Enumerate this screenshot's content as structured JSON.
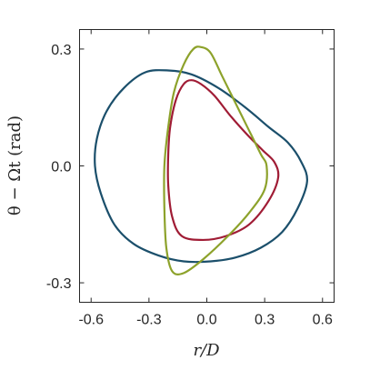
{
  "chart_data": {
    "type": "line",
    "title": "",
    "xlabel": "r/D",
    "ylabel": "θ − Ωt (rad)",
    "xlim": [
      -0.66,
      0.66
    ],
    "ylim": [
      -0.35,
      0.35
    ],
    "xticks": [
      -0.6,
      -0.3,
      0.0,
      0.3,
      0.6
    ],
    "xtick_labels": [
      "-0.6",
      "-0.3",
      "0.0",
      "0.3",
      "0.6"
    ],
    "yticks": [
      -0.3,
      0.0,
      0.3
    ],
    "ytick_labels": [
      "-0.3",
      "0.0",
      "0.3"
    ],
    "grid": false,
    "legend": "none",
    "series": [
      {
        "color": "#1b4f6b",
        "closed": true,
        "x": [
          0.52,
          0.47,
          0.39,
          0.28,
          0.15,
          0.02,
          -0.12,
          -0.25,
          -0.38,
          -0.48,
          -0.55,
          -0.58,
          -0.57,
          -0.52,
          -0.43,
          -0.32,
          -0.2,
          -0.08,
          0.06,
          0.2,
          0.32,
          0.42,
          0.49,
          0.52
        ],
        "y": [
          -0.04,
          -0.11,
          -0.17,
          -0.21,
          -0.235,
          -0.245,
          -0.245,
          -0.23,
          -0.2,
          -0.15,
          -0.07,
          0.0,
          0.07,
          0.14,
          0.2,
          0.24,
          0.245,
          0.235,
          0.2,
          0.15,
          0.1,
          0.06,
          0.01,
          -0.04
        ]
      },
      {
        "color": "#a01c35",
        "closed": true,
        "x": [
          0.37,
          0.32,
          0.22,
          0.1,
          -0.02,
          -0.13,
          -0.18,
          -0.2,
          -0.2,
          -0.19,
          -0.16,
          -0.12,
          -0.08,
          -0.03,
          0.04,
          0.12,
          0.21,
          0.29,
          0.35,
          0.37
        ],
        "y": [
          -0.03,
          -0.09,
          -0.15,
          -0.18,
          -0.19,
          -0.18,
          -0.13,
          -0.05,
          0.03,
          0.1,
          0.17,
          0.21,
          0.22,
          0.21,
          0.18,
          0.13,
          0.08,
          0.04,
          0.01,
          -0.03
        ]
      },
      {
        "color": "#8da22b",
        "closed": true,
        "x": [
          0.3,
          0.22,
          0.11,
          -0.02,
          -0.12,
          -0.18,
          -0.21,
          -0.22,
          -0.22,
          -0.2,
          -0.17,
          -0.12,
          -0.07,
          -0.03,
          0.02,
          0.08,
          0.15,
          0.22,
          0.28,
          0.31,
          0.3
        ],
        "y": [
          -0.06,
          -0.12,
          -0.18,
          -0.24,
          -0.275,
          -0.27,
          -0.21,
          -0.11,
          0.0,
          0.1,
          0.19,
          0.26,
          0.3,
          0.305,
          0.29,
          0.23,
          0.16,
          0.09,
          0.03,
          0.0,
          -0.06
        ]
      }
    ]
  }
}
